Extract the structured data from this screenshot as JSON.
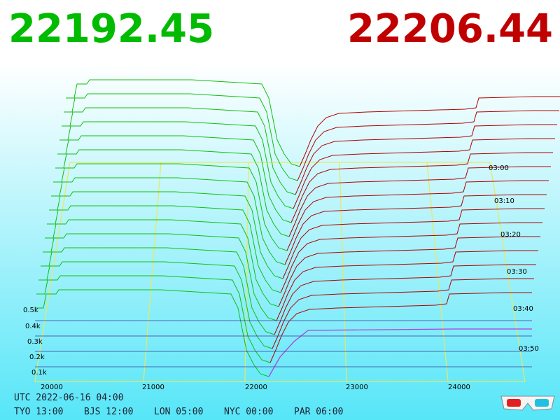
{
  "prices": {
    "bid": "22192.45",
    "ask": "22206.44"
  },
  "depth_axis": [
    "0.5k",
    "0.4k",
    "0.3k",
    "0.2k",
    "0.1k"
  ],
  "price_axis": [
    "20000",
    "21000",
    "22000",
    "23000",
    "24000"
  ],
  "time_axis": [
    "03:00",
    "03:10",
    "03:20",
    "03:30",
    "03:40",
    "03:50"
  ],
  "clock": {
    "utc": "UTC 2022-06-16 04:00",
    "zones": [
      "TYO 13:00",
      "BJS 12:00",
      "LON 05:00",
      "NYC 00:00",
      "PAR 06:00"
    ]
  }
}
